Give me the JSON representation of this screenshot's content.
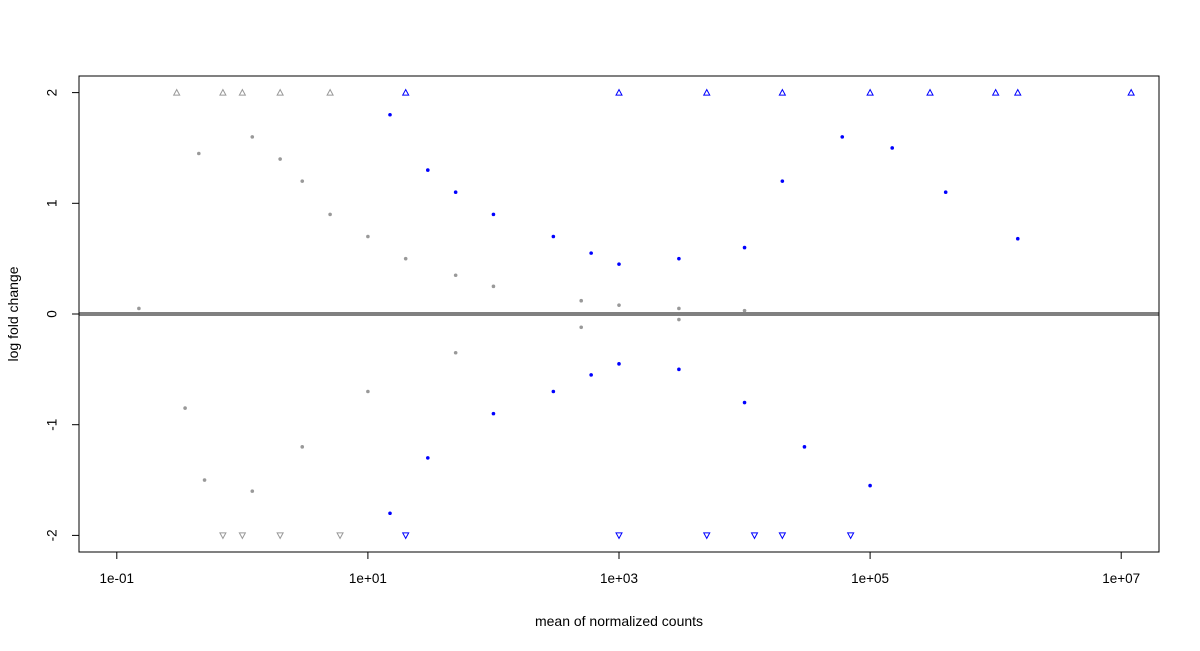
{
  "chart_data": {
    "type": "scatter",
    "title": "",
    "xlabel": "mean of normalized counts",
    "ylabel": "log fold change",
    "x_scale": "log10",
    "xlim": [
      0.05,
      20000000
    ],
    "ylim": [
      -2.15,
      2.15
    ],
    "x_ticks": [
      {
        "value": 0.1,
        "label": "1e-01"
      },
      {
        "value": 10,
        "label": "1e+01"
      },
      {
        "value": 1000,
        "label": "1e+03"
      },
      {
        "value": 100000,
        "label": "1e+05"
      },
      {
        "value": 10000000,
        "label": "1e+07"
      }
    ],
    "y_ticks": [
      {
        "value": -2,
        "label": "-2"
      },
      {
        "value": -1,
        "label": "-1"
      },
      {
        "value": 0,
        "label": "0"
      },
      {
        "value": 1,
        "label": "1"
      },
      {
        "value": 2,
        "label": "2"
      }
    ],
    "reference_line_y": 0,
    "grid": false,
    "legend": "none",
    "colors": {
      "not_significant": "#999999",
      "significant": "#0000ff",
      "reference_line": "#808080"
    },
    "series": [
      {
        "values": [
          {
            "x": 1.2,
            "y": 1.6
          },
          {
            "x": 2.0,
            "y": 1.4
          },
          {
            "x": 3.0,
            "y": 1.2
          },
          {
            "x": 5.0,
            "y": 0.9
          },
          {
            "x": 10,
            "y": 0.7
          },
          {
            "x": 20,
            "y": 0.5
          },
          {
            "x": 50,
            "y": 0.35
          },
          {
            "x": 100,
            "y": 0.25
          },
          {
            "x": 500,
            "y": 0.12
          },
          {
            "x": 1000,
            "y": 0.08
          },
          {
            "x": 3000,
            "y": 0.05
          },
          {
            "x": 10000,
            "y": 0.03
          },
          {
            "x": 1.2,
            "y": -1.6
          },
          {
            "x": 3.0,
            "y": -1.2
          },
          {
            "x": 10,
            "y": -0.7
          },
          {
            "x": 50,
            "y": -0.35
          },
          {
            "x": 500,
            "y": -0.12
          },
          {
            "x": 3000,
            "y": -0.05
          },
          {
            "x": 0.15,
            "y": 0.05
          },
          {
            "x": 0.45,
            "y": 1.45
          },
          {
            "x": 0.35,
            "y": -0.85
          },
          {
            "x": 0.5,
            "y": -1.5
          },
          {
            "x": 0.3,
            "y": 2.0
          },
          {
            "x": 0.7,
            "y": 2.0
          },
          {
            "x": 1.0,
            "y": 2.0
          },
          {
            "x": 2.0,
            "y": 2.0
          },
          {
            "x": 5.0,
            "y": 2.0
          },
          {
            "x": 0.7,
            "y": -2.0
          },
          {
            "x": 1.0,
            "y": -2.0
          },
          {
            "x": 2.0,
            "y": -2.0
          },
          {
            "x": 6.0,
            "y": -2.0
          }
        ]
      },
      {
        "values": [
          {
            "x": 15,
            "y": 1.8
          },
          {
            "x": 30,
            "y": 1.3
          },
          {
            "x": 50,
            "y": 1.1
          },
          {
            "x": 100,
            "y": 0.9
          },
          {
            "x": 300,
            "y": 0.7
          },
          {
            "x": 600,
            "y": 0.55
          },
          {
            "x": 1000,
            "y": 0.45
          },
          {
            "x": 3000,
            "y": 0.5
          },
          {
            "x": 10000,
            "y": 0.6
          },
          {
            "x": 20000,
            "y": 1.2
          },
          {
            "x": 60000,
            "y": 1.6
          },
          {
            "x": 150000,
            "y": 1.5
          },
          {
            "x": 400000,
            "y": 1.1
          },
          {
            "x": 1500000,
            "y": 0.68
          },
          {
            "x": 15,
            "y": -1.8
          },
          {
            "x": 30,
            "y": -1.3
          },
          {
            "x": 100,
            "y": -0.9
          },
          {
            "x": 300,
            "y": -0.7
          },
          {
            "x": 600,
            "y": -0.55
          },
          {
            "x": 1000,
            "y": -0.45
          },
          {
            "x": 3000,
            "y": -0.5
          },
          {
            "x": 10000,
            "y": -0.8
          },
          {
            "x": 30000,
            "y": -1.2
          },
          {
            "x": 100000,
            "y": -1.55
          },
          {
            "x": 20,
            "y": 2.0
          },
          {
            "x": 1000,
            "y": 2.0
          },
          {
            "x": 5000,
            "y": 2.0
          },
          {
            "x": 20000,
            "y": 2.0
          },
          {
            "x": 100000,
            "y": 2.0
          },
          {
            "x": 300000,
            "y": 2.0
          },
          {
            "x": 1000000,
            "y": 2.0
          },
          {
            "x": 1500000,
            "y": 2.0
          },
          {
            "x": 12000000,
            "y": 2.0
          },
          {
            "x": 20,
            "y": -2.0
          },
          {
            "x": 1000,
            "y": -2.0
          },
          {
            "x": 5000,
            "y": -2.0
          },
          {
            "x": 12000,
            "y": -2.0
          },
          {
            "x": 20000,
            "y": -2.0
          },
          {
            "x": 70000,
            "y": -2.0
          }
        ]
      }
    ]
  }
}
